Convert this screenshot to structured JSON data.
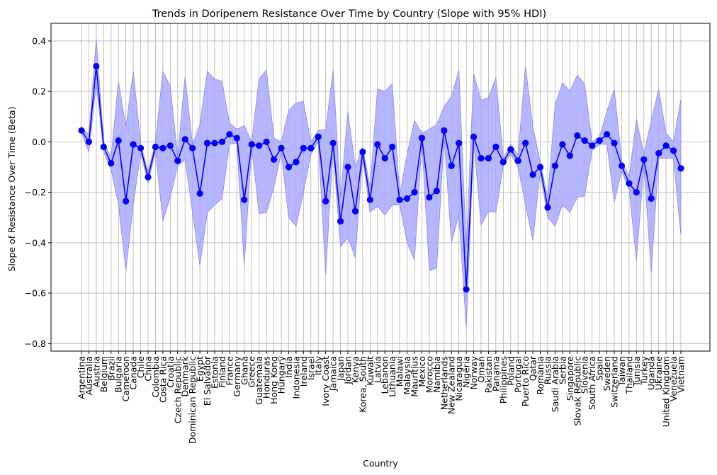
{
  "chart_data": {
    "type": "line",
    "title": "Trends in Doripenem Resistance Over Time by Country (Slope with 95% HDI)",
    "xlabel": "Country",
    "ylabel": "Slope of Resistance Over Time (Beta)",
    "ylim": [
      -0.83,
      0.47
    ],
    "yticks": [
      -0.8,
      -0.6,
      -0.4,
      -0.2,
      0.0,
      0.2,
      0.4
    ],
    "ytick_labels": [
      "−0.8",
      "−0.6",
      "−0.4",
      "−0.2",
      "0.0",
      "0.2",
      "0.4"
    ],
    "grid": true,
    "line_color": "#0000ff",
    "band_color": "#aaaaff",
    "categories": [
      "Argentina",
      "Australia",
      "Austria",
      "Belgium",
      "Brazil",
      "Bulgaria",
      "Cameroon",
      "Canada",
      "Chile",
      "China",
      "Colombia",
      "Costa Rica",
      "Croatia",
      "Czech Republic",
      "Denmark",
      "Dominican Republic",
      "Egypt",
      "El Salvador",
      "Estonia",
      "Finland",
      "France",
      "Germany",
      "Ghana",
      "Greece",
      "Guatemala",
      "Honduras",
      "Hong Kong",
      "Hungary",
      "India",
      "Indonesia",
      "Ireland",
      "Israel",
      "Italy",
      "Ivory Coast",
      "Jamaica",
      "Japan",
      "Jordan",
      "Kenya",
      "Korea, South",
      "Kuwait",
      "Latvia",
      "Lebanon",
      "Lithuania",
      "Malawi",
      "Malaysia",
      "Mauritius",
      "Mexico",
      "Morocco",
      "Namibia",
      "Netherlands",
      "New Zealand",
      "Nicaragua",
      "Nigeria",
      "Norway",
      "Oman",
      "Pakistan",
      "Panama",
      "Philippines",
      "Poland",
      "Portugal",
      "Puerto Rico",
      "Qatar",
      "Romania",
      "Russia",
      "Saudi Arabia",
      "Serbia",
      "Singapore",
      "Slovak Republic",
      "Slovenia",
      "South Africa",
      "Spain",
      "Sweden",
      "Switzerland",
      "Taiwan",
      "Thailand",
      "Tunisia",
      "Turkey",
      "Uganda",
      "Ukraine",
      "United Kingdom",
      "Venezuela",
      "Vietnam"
    ],
    "series": [
      {
        "values": [
          0.045,
          0.0,
          0.3,
          -0.02,
          -0.085,
          0.005,
          -0.235,
          -0.01,
          -0.025,
          -0.14,
          -0.02,
          -0.025,
          -0.015,
          -0.075,
          0.01,
          -0.025,
          -0.205,
          -0.005,
          -0.005,
          0.0,
          0.03,
          0.015,
          -0.23,
          -0.01,
          -0.015,
          0.0,
          -0.07,
          -0.025,
          -0.1,
          -0.08,
          -0.025,
          -0.025,
          0.02,
          -0.235,
          -0.005,
          -0.315,
          -0.1,
          -0.275,
          -0.04,
          -0.23,
          -0.01,
          -0.065,
          -0.02,
          -0.23,
          -0.225,
          -0.2,
          0.015,
          -0.22,
          -0.195,
          0.045,
          -0.095,
          -0.005,
          -0.585,
          0.02,
          -0.065,
          -0.065,
          -0.02,
          -0.08,
          -0.03,
          -0.075,
          -0.005,
          -0.13,
          -0.1,
          -0.26,
          -0.095,
          -0.01,
          -0.055,
          0.025,
          0.005,
          -0.015,
          0.005,
          0.03,
          -0.005,
          -0.095,
          -0.165,
          -0.2,
          -0.07,
          -0.225,
          -0.045,
          -0.015,
          -0.035,
          -0.105
        ],
        "hdi_lower": [
          0.035,
          -0.04,
          0.23,
          -0.04,
          -0.11,
          -0.25,
          -0.51,
          -0.25,
          -0.045,
          -0.165,
          -0.035,
          -0.315,
          -0.22,
          -0.095,
          -0.07,
          -0.28,
          -0.49,
          -0.28,
          -0.25,
          -0.225,
          -0.01,
          -0.005,
          -0.49,
          -0.02,
          -0.285,
          -0.28,
          -0.18,
          -0.045,
          -0.3,
          -0.335,
          -0.2,
          -0.05,
          0.0,
          -0.525,
          -0.03,
          -0.415,
          -0.38,
          -0.46,
          -0.06,
          -0.28,
          -0.255,
          -0.29,
          -0.25,
          -0.25,
          -0.4,
          -0.47,
          0.0,
          -0.51,
          -0.5,
          0.02,
          -0.4,
          -0.29,
          -0.74,
          0.0,
          -0.33,
          -0.275,
          -0.28,
          -0.095,
          -0.05,
          -0.1,
          -0.25,
          -0.39,
          -0.12,
          -0.3,
          -0.335,
          -0.25,
          -0.28,
          -0.22,
          -0.215,
          -0.035,
          -0.01,
          -0.01,
          -0.24,
          -0.115,
          -0.19,
          -0.47,
          -0.095,
          -0.52,
          -0.065,
          -0.065,
          -0.065,
          -0.37
        ],
        "hdi_upper": [
          0.055,
          0.03,
          0.41,
          0.0,
          -0.06,
          0.24,
          0.06,
          0.28,
          -0.005,
          -0.12,
          0.0,
          0.28,
          0.22,
          -0.055,
          0.26,
          -0.01,
          0.07,
          0.28,
          0.25,
          0.24,
          0.075,
          0.05,
          0.065,
          0.0,
          0.25,
          0.285,
          0.015,
          0.0,
          0.125,
          0.155,
          0.16,
          0.0,
          0.045,
          0.05,
          0.285,
          -0.22,
          0.12,
          -0.1,
          -0.02,
          -0.18,
          0.21,
          0.2,
          0.23,
          -0.21,
          -0.05,
          0.085,
          0.035,
          0.05,
          0.07,
          0.14,
          0.18,
          0.285,
          -0.42,
          0.27,
          0.165,
          0.175,
          0.255,
          -0.065,
          -0.01,
          -0.05,
          0.3,
          0.06,
          -0.08,
          -0.22,
          0.145,
          0.235,
          0.2,
          0.265,
          0.23,
          0.0,
          0.02,
          0.12,
          0.21,
          -0.075,
          -0.14,
          0.09,
          -0.05,
          0.085,
          0.21,
          0.035,
          0.0,
          0.17
        ]
      }
    ]
  }
}
